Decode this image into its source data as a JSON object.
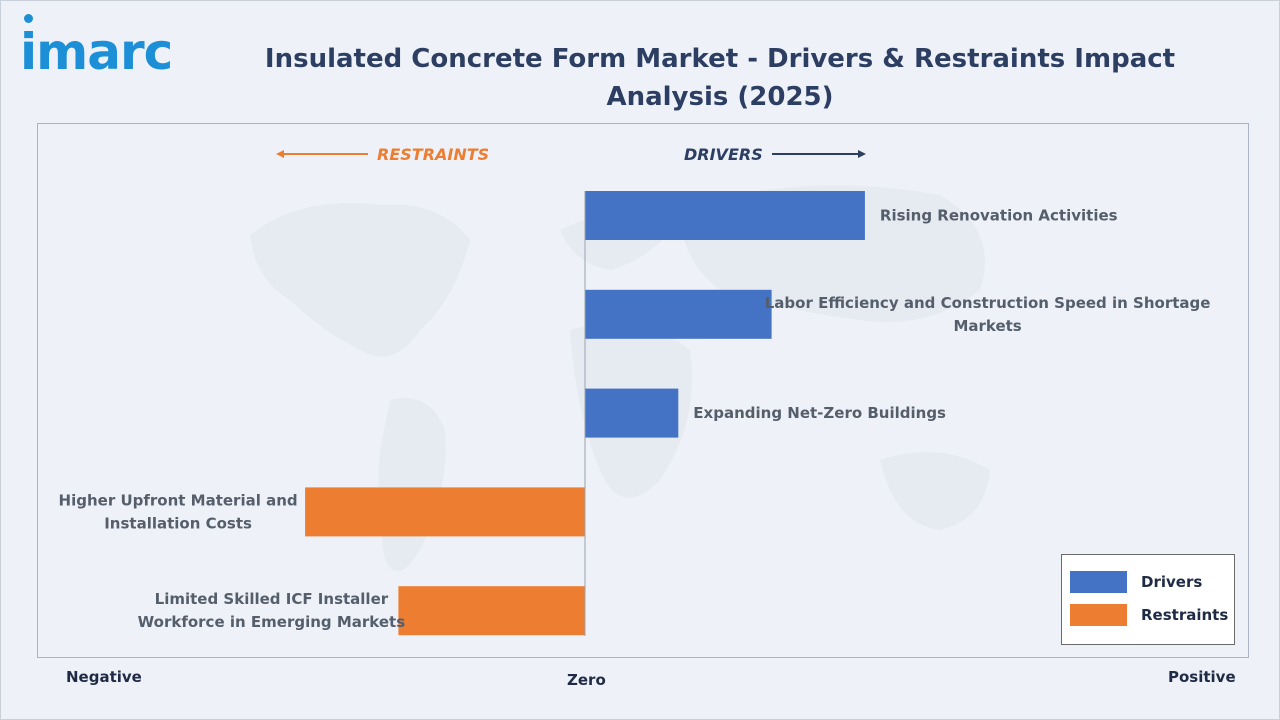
{
  "brand": {
    "logo_text": "imarc"
  },
  "title": "Insulated Concrete Form Market - Drivers & Restraints Impact Analysis (2025)",
  "colors": {
    "drivers": "#4472c4",
    "restraints": "#ed7d31",
    "title": "#2d3e63",
    "brand": "#1c8fd6"
  },
  "direction": {
    "restraints_label": "RESTRAINTS",
    "drivers_label": "DRIVERS"
  },
  "axis": {
    "negative": "Negative",
    "zero": "Zero",
    "positive": "Positive"
  },
  "legend": {
    "drivers": "Drivers",
    "restraints": "Restraints"
  },
  "chart_data": {
    "type": "bar",
    "orientation": "horizontal",
    "categories": [
      "Rising Renovation Activities",
      "Labor Efficiency and Construction Speed in Shortage Markets",
      "Expanding Net-Zero Buildings",
      "Higher Upfront Material and Installation Costs",
      "Limited Skilled ICF Installer Workforce in Emerging Markets"
    ],
    "series": [
      {
        "name": "Drivers",
        "values": [
          3,
          2,
          1,
          null,
          null
        ]
      },
      {
        "name": "Restraints",
        "values": [
          null,
          null,
          null,
          -3,
          -2
        ]
      }
    ],
    "xlim": [
      -6,
      6
    ],
    "grid": false,
    "legend_position": "bottom-right"
  }
}
